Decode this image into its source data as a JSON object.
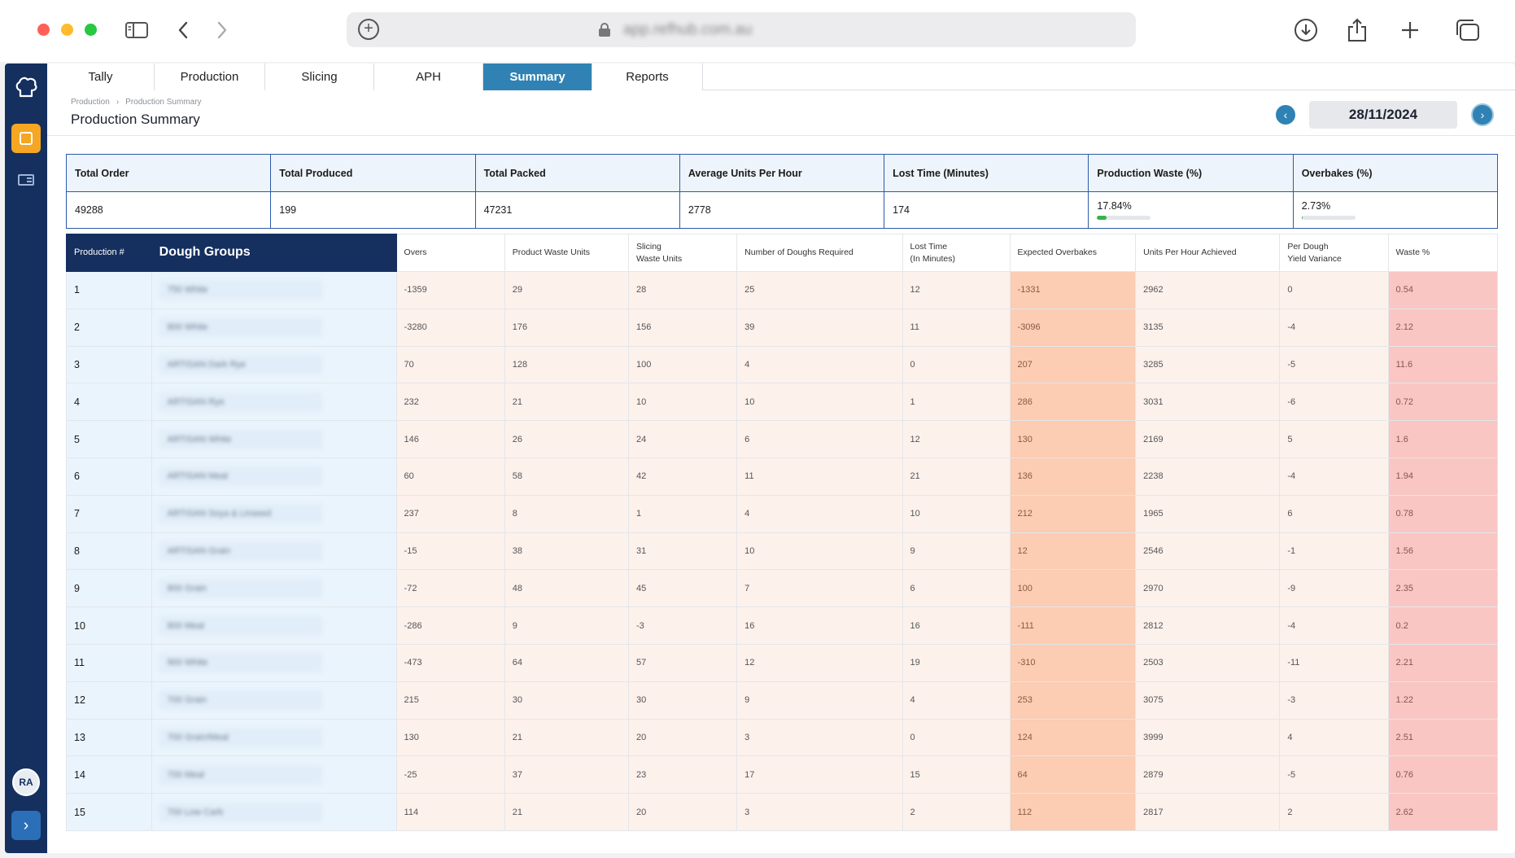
{
  "browser": {
    "url": "app.refhub.com.au"
  },
  "sidebar": {
    "avatar_initials": "RA",
    "expand_glyph": "›"
  },
  "tabs": [
    {
      "label": "Tally"
    },
    {
      "label": "Production"
    },
    {
      "label": "Slicing"
    },
    {
      "label": "APH"
    },
    {
      "label": "Summary",
      "active": true
    },
    {
      "label": "Reports"
    }
  ],
  "breadcrumb": [
    "Production",
    "Production Summary"
  ],
  "page_title": "Production Summary",
  "date": {
    "value": "28/11/2024",
    "prev_glyph": "‹",
    "next_glyph": "›"
  },
  "summary": {
    "headers": [
      "Total Order",
      "Total Produced",
      "Total Packed",
      "Average Units Per Hour",
      "Lost Time (Minutes)",
      "Production Waste (%)",
      "Overbakes (%)"
    ],
    "values": [
      "49288",
      "199",
      "47231",
      "2778",
      "174",
      "17.84%",
      "2.73%"
    ],
    "production_waste_pct": 17.84,
    "overbakes_pct": 2.73
  },
  "grid": {
    "headers": {
      "production": "Production #",
      "dough": "Dough Groups",
      "overs": "Overs",
      "product_waste": "Product Waste Units",
      "slicing_waste_1": "Slicing",
      "slicing_waste_2": "Waste Units",
      "doughs_required": "Number of Doughs Required",
      "lost_time_1": "Lost Time",
      "lost_time_2": "(In Minutes)",
      "expected_overbakes": "Expected Overbakes",
      "uph": "Units Per Hour Achieved",
      "yield_1": "Per Dough",
      "yield_2": "Yield Variance",
      "waste_pct": "Waste %"
    },
    "rows": [
      {
        "n": "1",
        "dough": "750 White",
        "overs": "-1359",
        "pw": "29",
        "sw": "28",
        "dr": "25",
        "lt": "12",
        "eo": "-1331",
        "uph": "2962",
        "yv": "0",
        "wp": "0.54"
      },
      {
        "n": "2",
        "dough": "800 White",
        "overs": "-3280",
        "pw": "176",
        "sw": "156",
        "dr": "39",
        "lt": "11",
        "eo": "-3096",
        "uph": "3135",
        "yv": "-4",
        "wp": "2.12"
      },
      {
        "n": "3",
        "dough": "ARTISAN Dark Rye",
        "overs": "70",
        "pw": "128",
        "sw": "100",
        "dr": "4",
        "lt": "0",
        "eo": "207",
        "uph": "3285",
        "yv": "-5",
        "wp": "11.6"
      },
      {
        "n": "4",
        "dough": "ARTISAN Rye",
        "overs": "232",
        "pw": "21",
        "sw": "10",
        "dr": "10",
        "lt": "1",
        "eo": "286",
        "uph": "3031",
        "yv": "-6",
        "wp": "0.72"
      },
      {
        "n": "5",
        "dough": "ARTISAN White",
        "overs": "146",
        "pw": "26",
        "sw": "24",
        "dr": "6",
        "lt": "12",
        "eo": "130",
        "uph": "2169",
        "yv": "5",
        "wp": "1.6"
      },
      {
        "n": "6",
        "dough": "ARTISAN Meal",
        "overs": "60",
        "pw": "58",
        "sw": "42",
        "dr": "11",
        "lt": "21",
        "eo": "136",
        "uph": "2238",
        "yv": "-4",
        "wp": "1.94"
      },
      {
        "n": "7",
        "dough": "ARTISAN Soya & Linseed",
        "overs": "237",
        "pw": "8",
        "sw": "1",
        "dr": "4",
        "lt": "10",
        "eo": "212",
        "uph": "1965",
        "yv": "6",
        "wp": "0.78"
      },
      {
        "n": "8",
        "dough": "ARTISAN Grain",
        "overs": "-15",
        "pw": "38",
        "sw": "31",
        "dr": "10",
        "lt": "9",
        "eo": "12",
        "uph": "2546",
        "yv": "-1",
        "wp": "1.56"
      },
      {
        "n": "9",
        "dough": "800 Grain",
        "overs": "-72",
        "pw": "48",
        "sw": "45",
        "dr": "7",
        "lt": "6",
        "eo": "100",
        "uph": "2970",
        "yv": "-9",
        "wp": "2.35"
      },
      {
        "n": "10",
        "dough": "800 Meal",
        "overs": "-286",
        "pw": "9",
        "sw": "-3",
        "dr": "16",
        "lt": "16",
        "eo": "-111",
        "uph": "2812",
        "yv": "-4",
        "wp": "0.2"
      },
      {
        "n": "11",
        "dough": "900 White",
        "overs": "-473",
        "pw": "64",
        "sw": "57",
        "dr": "12",
        "lt": "19",
        "eo": "-310",
        "uph": "2503",
        "yv": "-11",
        "wp": "2.21"
      },
      {
        "n": "12",
        "dough": "700 Grain",
        "overs": "215",
        "pw": "30",
        "sw": "30",
        "dr": "9",
        "lt": "4",
        "eo": "253",
        "uph": "3075",
        "yv": "-3",
        "wp": "1.22"
      },
      {
        "n": "13",
        "dough": "700 Grain/Meal",
        "overs": "130",
        "pw": "21",
        "sw": "20",
        "dr": "3",
        "lt": "0",
        "eo": "124",
        "uph": "3999",
        "yv": "4",
        "wp": "2.51"
      },
      {
        "n": "14",
        "dough": "700 Meal",
        "overs": "-25",
        "pw": "37",
        "sw": "23",
        "dr": "17",
        "lt": "15",
        "eo": "64",
        "uph": "2879",
        "yv": "-5",
        "wp": "0.76"
      },
      {
        "n": "15",
        "dough": "700 Low Carb",
        "overs": "114",
        "pw": "21",
        "sw": "20",
        "dr": "3",
        "lt": "2",
        "eo": "112",
        "uph": "2817",
        "yv": "2",
        "wp": "2.62"
      }
    ]
  }
}
